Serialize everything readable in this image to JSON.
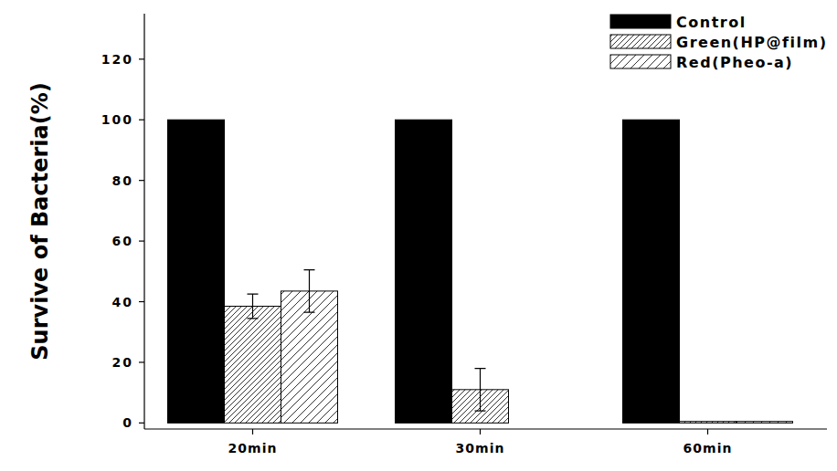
{
  "chart_data": {
    "type": "bar",
    "y_label": "Survive of Bacteria(%)",
    "categories": [
      "20min",
      "30min",
      "60min"
    ],
    "series": [
      {
        "name": "Control",
        "color": "#000000",
        "values": [
          100,
          100,
          100
        ],
        "errors": [
          null,
          null,
          null
        ]
      },
      {
        "name": "Green(HP@film)",
        "color": "#000000",
        "values": [
          38.5,
          11,
          0.5
        ],
        "errors": [
          4,
          7,
          null
        ]
      },
      {
        "name": "Red(Pheo-a)",
        "color": "#000000",
        "values": [
          43.5,
          0,
          0.5
        ],
        "errors": [
          7,
          null,
          null
        ]
      }
    ],
    "ylim": [
      -2,
      135
    ],
    "yticks": [
      0,
      20,
      40,
      60,
      80,
      100,
      120
    ],
    "legend": "top-right",
    "grid": false
  }
}
